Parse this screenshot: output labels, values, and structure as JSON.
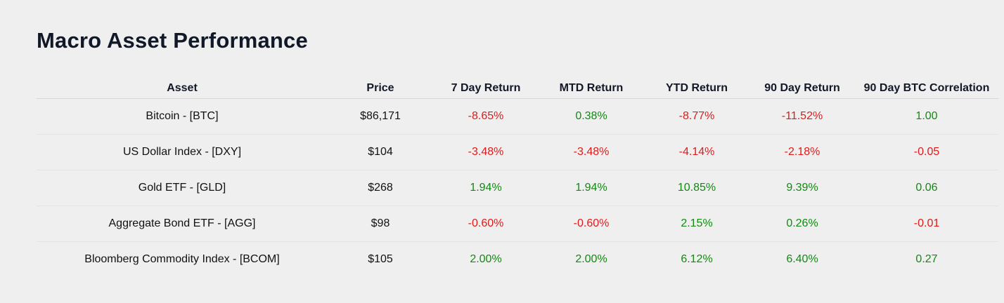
{
  "title": "Macro Asset Performance",
  "colors": {
    "positive": "#118a11",
    "negative": "#e01a1a"
  },
  "table": {
    "headers": [
      "Asset",
      "Price",
      "7 Day Return",
      "MTD Return",
      "YTD Return",
      "90 Day Return",
      "90 Day BTC Correlation"
    ],
    "rows": [
      {
        "asset": "Bitcoin - [BTC]",
        "price": "$86,171",
        "d7": "-8.65%",
        "mtd": "0.38%",
        "ytd": "-8.77%",
        "d90": "-11.52%",
        "corr": "1.00"
      },
      {
        "asset": "US Dollar Index - [DXY]",
        "price": "$104",
        "d7": "-3.48%",
        "mtd": "-3.48%",
        "ytd": "-4.14%",
        "d90": "-2.18%",
        "corr": "-0.05"
      },
      {
        "asset": "Gold ETF - [GLD]",
        "price": "$268",
        "d7": "1.94%",
        "mtd": "1.94%",
        "ytd": "10.85%",
        "d90": "9.39%",
        "corr": "0.06"
      },
      {
        "asset": "Aggregate Bond ETF - [AGG]",
        "price": "$98",
        "d7": "-0.60%",
        "mtd": "-0.60%",
        "ytd": "2.15%",
        "d90": "0.26%",
        "corr": "-0.01"
      },
      {
        "asset": "Bloomberg Commodity Index - [BCOM]",
        "price": "$105",
        "d7": "2.00%",
        "mtd": "2.00%",
        "ytd": "6.12%",
        "d90": "6.40%",
        "corr": "0.27"
      }
    ]
  }
}
